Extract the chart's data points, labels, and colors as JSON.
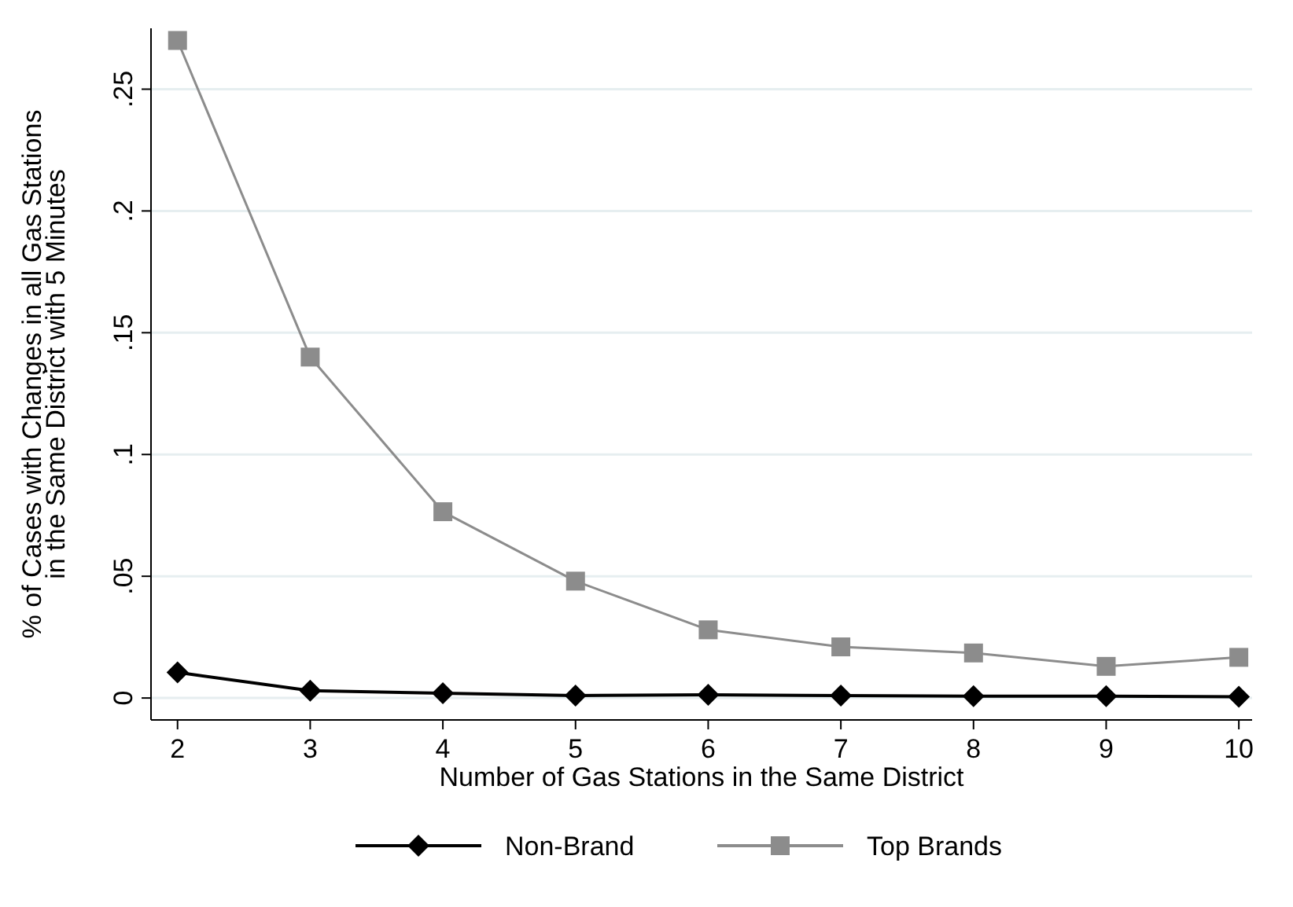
{
  "chart_data": {
    "type": "line",
    "xlabel": "Number of Gas Stations in the Same District",
    "ylabel": "% of Cases with Changes in all Gas Stations\nin the Same District with 5 Minutes",
    "x": [
      2,
      3,
      4,
      5,
      6,
      7,
      8,
      9,
      10
    ],
    "series": [
      {
        "name": "Non-Brand",
        "color": "#000000",
        "marker": "diamond",
        "values": [
          0.0105,
          0.003,
          0.002,
          0.001,
          0.0013,
          0.001,
          0.0008,
          0.0008,
          0.0005
        ]
      },
      {
        "name": "Top Brands",
        "color": "#8c8c8c",
        "marker": "square",
        "values": [
          0.27,
          0.14,
          0.0765,
          0.048,
          0.028,
          0.021,
          0.0185,
          0.013,
          0.0167
        ]
      }
    ],
    "xlim": [
      1.8,
      10.1
    ],
    "xticks": [
      2,
      3,
      4,
      5,
      6,
      7,
      8,
      9,
      10
    ],
    "ylim": [
      -0.009,
      0.275
    ],
    "yticks": [
      {
        "value": 0,
        "label": "0"
      },
      {
        "value": 0.05,
        "label": ".05"
      },
      {
        "value": 0.1,
        "label": ".1"
      },
      {
        "value": 0.15,
        "label": ".15"
      },
      {
        "value": 0.2,
        "label": ".2"
      },
      {
        "value": 0.25,
        "label": ".25"
      }
    ],
    "grid": "y",
    "legend": "bottom"
  }
}
